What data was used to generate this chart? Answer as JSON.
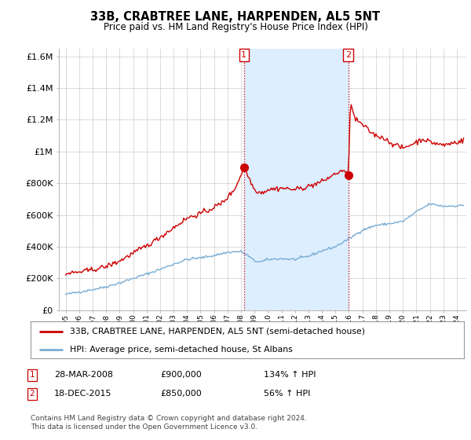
{
  "title": "33B, CRABTREE LANE, HARPENDEN, AL5 5NT",
  "subtitle": "Price paid vs. HM Land Registry's House Price Index (HPI)",
  "ylim": [
    0,
    1650000
  ],
  "yticks": [
    0,
    200000,
    400000,
    600000,
    800000,
    1000000,
    1200000,
    1400000,
    1600000
  ],
  "ytick_labels": [
    "£0",
    "£200K",
    "£400K",
    "£600K",
    "£800K",
    "£1M",
    "£1.2M",
    "£1.4M",
    "£1.6M"
  ],
  "legend_line1": "33B, CRABTREE LANE, HARPENDEN, AL5 5NT (semi-detached house)",
  "legend_line2": "HPI: Average price, semi-detached house, St Albans",
  "event1_date": "28-MAR-2008",
  "event1_price": 900000,
  "event1_label": "134% ↑ HPI",
  "event2_date": "18-DEC-2015",
  "event2_price": 850000,
  "event2_label": "56% ↑ HPI",
  "footer": "Contains HM Land Registry data © Crown copyright and database right 2024.\nThis data is licensed under the Open Government Licence v3.0.",
  "red_color": "#cc0000",
  "blue_color": "#7aadd4",
  "shade_color": "#ddeeff",
  "grid_color": "#cccccc",
  "background_color": "#ffffff",
  "event_vline_color": "#cc0000",
  "event_box_color": "#cc0000",
  "e1_x": 2008.22,
  "e1_y": 900000,
  "e2_x": 2015.96,
  "e2_y": 850000,
  "xlim_left": 1994.5,
  "xlim_right": 2024.7
}
